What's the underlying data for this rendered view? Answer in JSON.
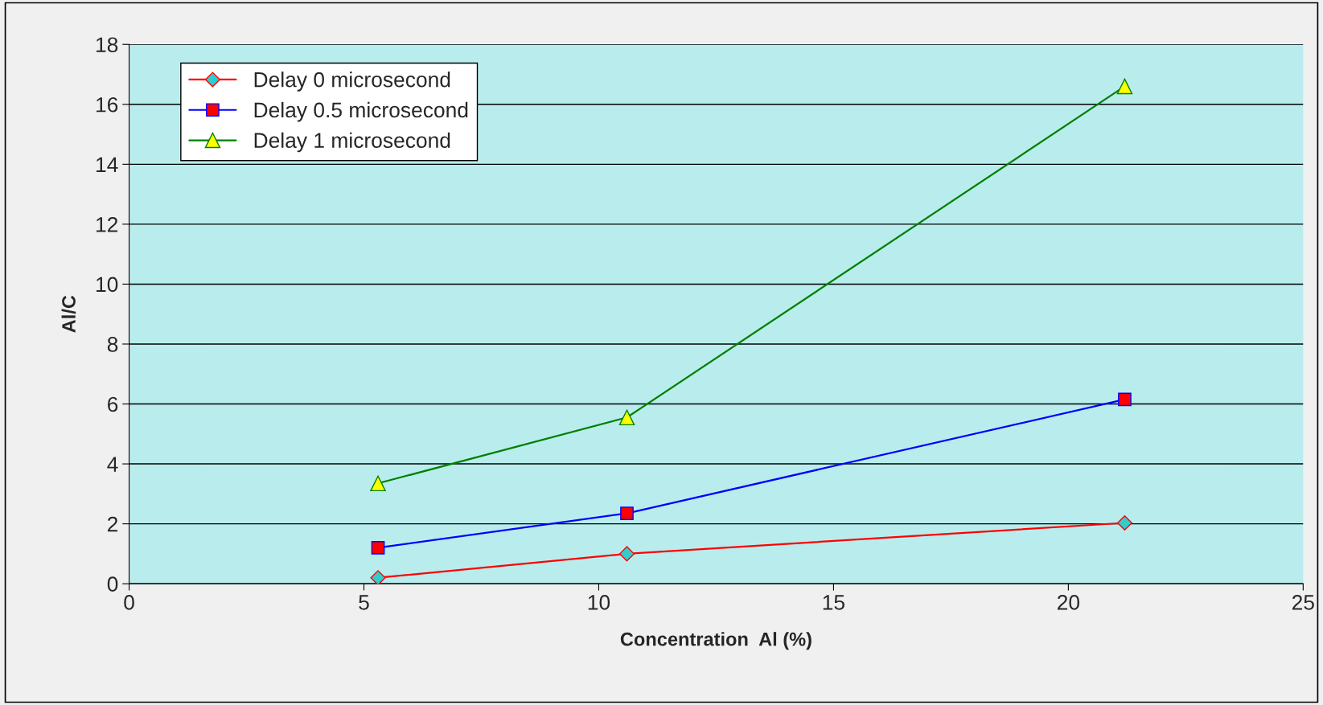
{
  "chart_data": {
    "type": "line",
    "xlabel": "Concentration  Al (%)",
    "ylabel": "Al/C",
    "x": [
      5.3,
      10.6,
      21.2
    ],
    "series": [
      {
        "name": "Delay 0 microsecond",
        "color": "#ff0000",
        "marker": "diamond",
        "values": [
          0.2,
          1.0,
          2.03
        ]
      },
      {
        "name": "Delay 0.5 microsecond",
        "color": "#0000ff",
        "marker": "square",
        "values": [
          1.2,
          2.35,
          6.15
        ]
      },
      {
        "name": "Delay 1 microsecond",
        "color": "#008000",
        "marker": "triangle",
        "values": [
          3.35,
          5.55,
          16.6
        ]
      }
    ],
    "xlim": [
      0,
      25
    ],
    "xticks": [
      0,
      5,
      10,
      15,
      20,
      25
    ],
    "ylim": [
      0,
      18
    ],
    "yticks": [
      0,
      2,
      4,
      6,
      8,
      10,
      12,
      14,
      16,
      18
    ],
    "grid": "y",
    "legend": "top left",
    "line_style": "solid"
  }
}
